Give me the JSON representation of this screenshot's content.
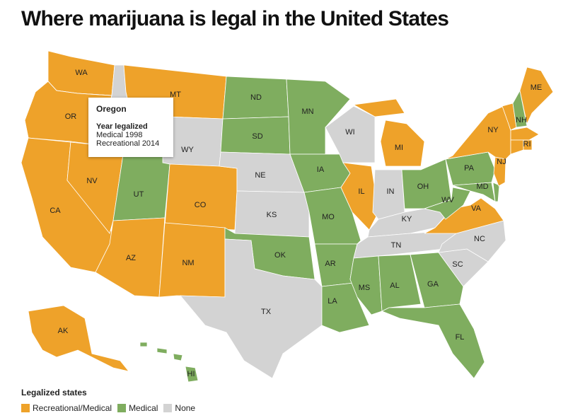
{
  "title": "Where marijuana is legal in the United States",
  "tooltip": {
    "state": "Oregon",
    "heading": "Year legalized",
    "lines": [
      "Medical 1998",
      "Recreational 2014"
    ]
  },
  "legend": {
    "title": "Legalized states",
    "items": [
      {
        "label": "Recreational/Medical",
        "color": "#eea22a",
        "states": [
          "WA",
          "OR",
          "CA",
          "NV",
          "MT",
          "CO",
          "AZ",
          "NM",
          "IL",
          "MI",
          "VA",
          "NY",
          "ME",
          "NJ",
          "RI",
          "AK"
        ]
      },
      {
        "label": "Medical",
        "color": "#7fad5f",
        "states": [
          "ND",
          "SD",
          "MN",
          "IA",
          "MO",
          "OK",
          "AR",
          "LA",
          "MS",
          "AL",
          "GA",
          "FL",
          "OH",
          "PA",
          "WV",
          "MD",
          "NH",
          "UT",
          "HI"
        ]
      },
      {
        "label": "None",
        "color": "#d3d3d3",
        "states": [
          "WY",
          "NE",
          "KS",
          "TX",
          "WI",
          "IN",
          "KY",
          "TN",
          "NC",
          "SC"
        ]
      }
    ]
  }
}
